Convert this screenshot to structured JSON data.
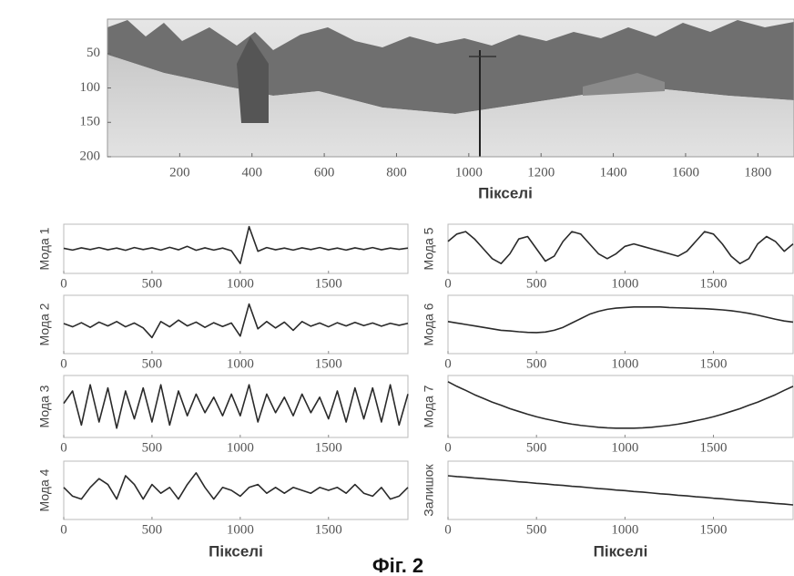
{
  "chart_data": [
    {
      "type": "image",
      "xlabel": "Пікселі",
      "xlim": [
        0,
        1900
      ],
      "ylim": [
        200,
        0
      ],
      "xticks": [
        200,
        400,
        600,
        800,
        1000,
        1200,
        1400,
        1600,
        1800
      ],
      "yticks": [
        50,
        100,
        150,
        200
      ]
    },
    {
      "type": "line",
      "ylabel": "Мода 1",
      "color": "#2a2a2a",
      "xlim": [
        0,
        1950
      ],
      "ylim": [
        -1,
        1
      ],
      "xticks": [
        0,
        500,
        1000,
        1500
      ],
      "x": [
        0,
        50,
        100,
        150,
        200,
        250,
        300,
        350,
        400,
        450,
        500,
        550,
        600,
        650,
        700,
        750,
        800,
        850,
        900,
        950,
        1000,
        1050,
        1100,
        1150,
        1200,
        1250,
        1300,
        1350,
        1400,
        1450,
        1500,
        1550,
        1600,
        1650,
        1700,
        1750,
        1800,
        1850,
        1900,
        1950
      ],
      "values": [
        0.02,
        -0.05,
        0.04,
        -0.03,
        0.05,
        -0.04,
        0.03,
        -0.06,
        0.05,
        -0.03,
        0.04,
        -0.05,
        0.06,
        -0.04,
        0.1,
        -0.06,
        0.04,
        -0.05,
        0.03,
        -0.08,
        -0.6,
        0.9,
        -0.1,
        0.05,
        -0.04,
        0.03,
        -0.05,
        0.04,
        -0.03,
        0.05,
        -0.04,
        0.03,
        -0.05,
        0.04,
        -0.03,
        0.05,
        -0.04,
        0.03,
        -0.02,
        0.03
      ]
    },
    {
      "type": "line",
      "ylabel": "Мода 2",
      "color": "#2a2a2a",
      "xlim": [
        0,
        1950
      ],
      "ylim": [
        -1,
        1
      ],
      "xticks": [
        0,
        500,
        1000,
        1500
      ],
      "x": [
        0,
        50,
        100,
        150,
        200,
        250,
        300,
        350,
        400,
        450,
        500,
        550,
        600,
        650,
        700,
        750,
        800,
        850,
        900,
        950,
        1000,
        1050,
        1100,
        1150,
        1200,
        1250,
        1300,
        1350,
        1400,
        1450,
        1500,
        1550,
        1600,
        1650,
        1700,
        1750,
        1800,
        1850,
        1900,
        1950
      ],
      "values": [
        0.03,
        -0.08,
        0.06,
        -0.1,
        0.08,
        -0.05,
        0.1,
        -0.08,
        0.05,
        -0.12,
        -0.45,
        0.1,
        -0.08,
        0.15,
        -0.05,
        0.08,
        -0.1,
        0.06,
        -0.07,
        0.05,
        -0.4,
        0.7,
        -0.15,
        0.1,
        -0.12,
        0.08,
        -0.2,
        0.1,
        -0.06,
        0.05,
        -0.08,
        0.06,
        -0.05,
        0.07,
        -0.04,
        0.05,
        -0.06,
        0.04,
        -0.03,
        0.04
      ]
    },
    {
      "type": "line",
      "ylabel": "Мода 3",
      "color": "#2a2a2a",
      "xlim": [
        0,
        1950
      ],
      "ylim": [
        -1,
        1
      ],
      "xticks": [
        0,
        500,
        1000,
        1500
      ],
      "x": [
        0,
        50,
        100,
        150,
        200,
        250,
        300,
        350,
        400,
        450,
        500,
        550,
        600,
        650,
        700,
        750,
        800,
        850,
        900,
        950,
        1000,
        1050,
        1100,
        1150,
        1200,
        1250,
        1300,
        1350,
        1400,
        1450,
        1500,
        1550,
        1600,
        1650,
        1700,
        1750,
        1800,
        1850,
        1900,
        1950
      ],
      "values": [
        0.1,
        0.5,
        -0.6,
        0.7,
        -0.5,
        0.6,
        -0.7,
        0.5,
        -0.4,
        0.6,
        -0.5,
        0.7,
        -0.6,
        0.5,
        -0.3,
        0.4,
        -0.2,
        0.3,
        -0.3,
        0.4,
        -0.3,
        0.7,
        -0.5,
        0.4,
        -0.2,
        0.3,
        -0.3,
        0.4,
        -0.2,
        0.3,
        -0.4,
        0.5,
        -0.5,
        0.6,
        -0.4,
        0.6,
        -0.5,
        0.7,
        -0.6,
        0.4
      ]
    },
    {
      "type": "line",
      "ylabel": "Мода 4",
      "xlabel": "Пікселі",
      "color": "#2a2a2a",
      "xlim": [
        0,
        1950
      ],
      "ylim": [
        -1,
        1
      ],
      "xticks": [
        0,
        500,
        1000,
        1500
      ],
      "x": [
        0,
        50,
        100,
        150,
        200,
        250,
        300,
        350,
        400,
        450,
        500,
        550,
        600,
        650,
        700,
        750,
        800,
        850,
        900,
        950,
        1000,
        1050,
        1100,
        1150,
        1200,
        1250,
        1300,
        1350,
        1400,
        1450,
        1500,
        1550,
        1600,
        1650,
        1700,
        1750,
        1800,
        1850,
        1900,
        1950
      ],
      "values": [
        0.1,
        -0.2,
        -0.3,
        0.1,
        0.4,
        0.2,
        -0.3,
        0.5,
        0.2,
        -0.3,
        0.2,
        -0.1,
        0.1,
        -0.3,
        0.2,
        0.6,
        0.1,
        -0.3,
        0.1,
        0.0,
        -0.2,
        0.1,
        0.2,
        -0.1,
        0.1,
        -0.1,
        0.1,
        0.0,
        -0.1,
        0.1,
        0.0,
        0.1,
        -0.1,
        0.2,
        -0.1,
        -0.2,
        0.1,
        -0.3,
        -0.2,
        0.1
      ]
    },
    {
      "type": "line",
      "ylabel": "Мода 5",
      "color": "#2a2a2a",
      "xlim": [
        0,
        1950
      ],
      "ylim": [
        -1,
        1
      ],
      "xticks": [
        0,
        500,
        1000,
        1500
      ],
      "x": [
        0,
        50,
        100,
        150,
        200,
        250,
        300,
        350,
        400,
        450,
        500,
        550,
        600,
        650,
        700,
        750,
        800,
        850,
        900,
        950,
        1000,
        1050,
        1100,
        1150,
        1200,
        1250,
        1300,
        1350,
        1400,
        1450,
        1500,
        1550,
        1600,
        1650,
        1700,
        1750,
        1800,
        1850,
        1900,
        1950
      ],
      "values": [
        0.3,
        0.6,
        0.7,
        0.4,
        0.0,
        -0.4,
        -0.6,
        -0.2,
        0.4,
        0.5,
        0.0,
        -0.5,
        -0.3,
        0.3,
        0.7,
        0.6,
        0.2,
        -0.2,
        -0.4,
        -0.2,
        0.1,
        0.2,
        0.1,
        0.0,
        -0.1,
        -0.2,
        -0.3,
        -0.1,
        0.3,
        0.7,
        0.6,
        0.2,
        -0.3,
        -0.6,
        -0.4,
        0.2,
        0.5,
        0.3,
        -0.1,
        0.2
      ]
    },
    {
      "type": "line",
      "ylabel": "Мода 6",
      "color": "#2a2a2a",
      "xlim": [
        0,
        1950
      ],
      "ylim": [
        -1,
        1
      ],
      "xticks": [
        0,
        500,
        1000,
        1500
      ],
      "x": [
        0,
        50,
        100,
        150,
        200,
        250,
        300,
        350,
        400,
        450,
        500,
        550,
        600,
        650,
        700,
        750,
        800,
        850,
        900,
        950,
        1000,
        1050,
        1100,
        1150,
        1200,
        1250,
        1300,
        1350,
        1400,
        1450,
        1500,
        1550,
        1600,
        1650,
        1700,
        1750,
        1800,
        1850,
        1900,
        1950
      ],
      "values": [
        0.1,
        0.05,
        0.0,
        -0.05,
        -0.1,
        -0.15,
        -0.2,
        -0.22,
        -0.25,
        -0.27,
        -0.28,
        -0.26,
        -0.2,
        -0.1,
        0.05,
        0.2,
        0.35,
        0.45,
        0.52,
        0.56,
        0.58,
        0.6,
        0.6,
        0.6,
        0.6,
        0.58,
        0.57,
        0.56,
        0.55,
        0.54,
        0.52,
        0.5,
        0.47,
        0.43,
        0.38,
        0.32,
        0.25,
        0.18,
        0.12,
        0.08
      ]
    },
    {
      "type": "line",
      "ylabel": "Мода 7",
      "color": "#2a2a2a",
      "xlim": [
        0,
        1950
      ],
      "ylim": [
        -1,
        1
      ],
      "xticks": [
        0,
        500,
        1000,
        1500
      ],
      "x": [
        0,
        50,
        100,
        150,
        200,
        250,
        300,
        350,
        400,
        450,
        500,
        550,
        600,
        650,
        700,
        750,
        800,
        850,
        900,
        950,
        1000,
        1050,
        1100,
        1150,
        1200,
        1250,
        1300,
        1350,
        1400,
        1450,
        1500,
        1550,
        1600,
        1650,
        1700,
        1750,
        1800,
        1850,
        1900,
        1950
      ],
      "values": [
        0.8,
        0.65,
        0.52,
        0.38,
        0.26,
        0.14,
        0.04,
        -0.07,
        -0.16,
        -0.25,
        -0.33,
        -0.4,
        -0.46,
        -0.52,
        -0.57,
        -0.61,
        -0.64,
        -0.67,
        -0.69,
        -0.7,
        -0.7,
        -0.7,
        -0.69,
        -0.67,
        -0.64,
        -0.61,
        -0.57,
        -0.52,
        -0.46,
        -0.4,
        -0.33,
        -0.25,
        -0.16,
        -0.07,
        0.04,
        0.14,
        0.26,
        0.38,
        0.52,
        0.65
      ]
    },
    {
      "type": "line",
      "ylabel": "Залишок",
      "xlabel": "Пікселі",
      "color": "#2a2a2a",
      "xlim": [
        0,
        1950
      ],
      "ylim": [
        -1,
        1
      ],
      "xticks": [
        0,
        500,
        1000,
        1500
      ],
      "x": [
        0,
        50,
        100,
        150,
        200,
        250,
        300,
        350,
        400,
        450,
        500,
        550,
        600,
        650,
        700,
        750,
        800,
        850,
        900,
        950,
        1000,
        1050,
        1100,
        1150,
        1200,
        1250,
        1300,
        1350,
        1400,
        1450,
        1500,
        1550,
        1600,
        1650,
        1700,
        1750,
        1800,
        1850,
        1900,
        1950
      ],
      "values": [
        0.5,
        0.47,
        0.45,
        0.42,
        0.4,
        0.37,
        0.35,
        0.32,
        0.29,
        0.27,
        0.24,
        0.22,
        0.19,
        0.17,
        0.14,
        0.12,
        0.09,
        0.06,
        0.04,
        0.01,
        -0.01,
        -0.04,
        -0.06,
        -0.09,
        -0.12,
        -0.14,
        -0.17,
        -0.19,
        -0.22,
        -0.24,
        -0.27,
        -0.29,
        -0.32,
        -0.35,
        -0.37,
        -0.4,
        -0.42,
        -0.45,
        -0.47,
        -0.5
      ]
    }
  ],
  "caption": "Фіг. 2"
}
